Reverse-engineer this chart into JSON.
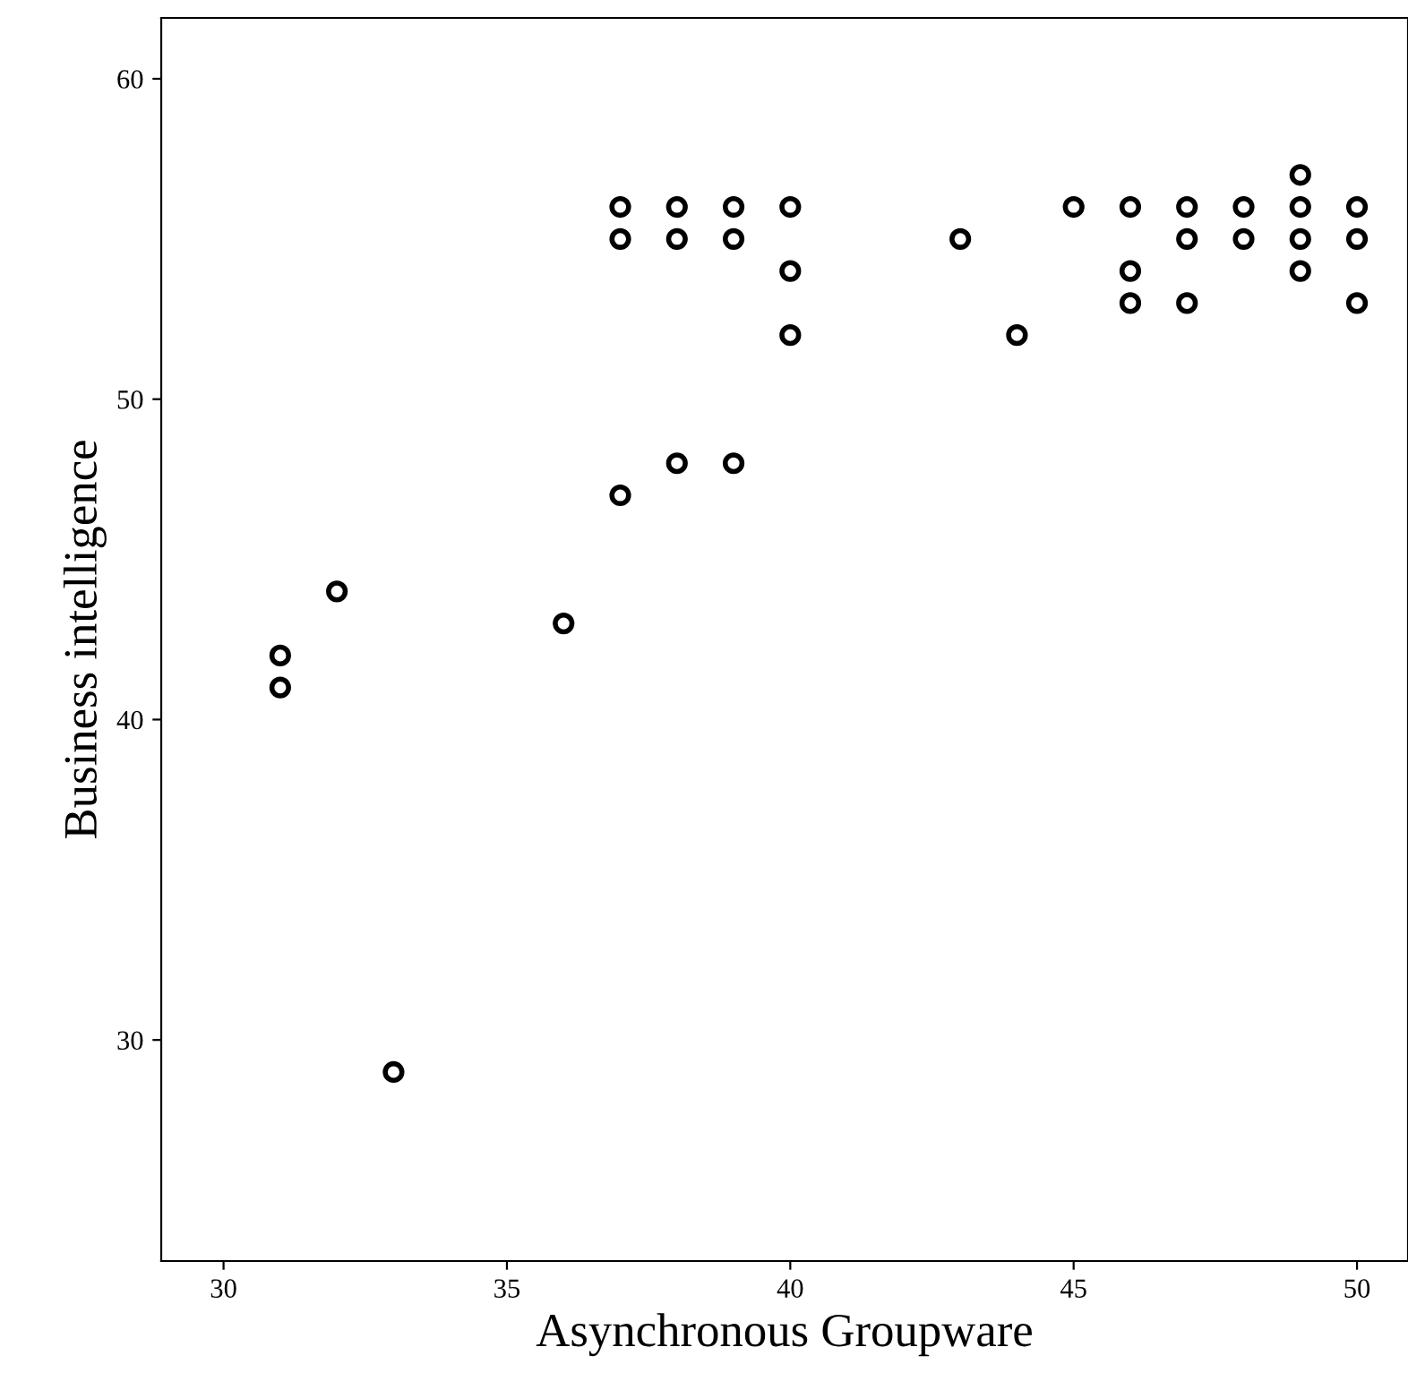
{
  "chart_data": {
    "type": "scatter",
    "xlabel": "Asynchronous Groupware",
    "ylabel": "Business intelligence",
    "series": [
      {
        "color": "#000000",
        "x": [
          31,
          31,
          32,
          33,
          36,
          37,
          37,
          37,
          38,
          38,
          38,
          39,
          39,
          39,
          40,
          40,
          40,
          43,
          44,
          45,
          46,
          46,
          46,
          47,
          47,
          47,
          48,
          48,
          49,
          49,
          49,
          49,
          50,
          50,
          50
        ],
        "values": [
          42,
          41,
          44,
          29,
          43,
          56,
          55,
          47,
          56,
          55,
          48,
          56,
          55,
          48,
          56,
          54,
          52,
          55,
          52,
          56,
          56,
          54,
          53,
          56,
          55,
          53,
          56,
          55,
          57,
          56,
          55,
          54,
          56,
          55,
          53
        ]
      }
    ],
    "xlim": [
      28.9,
      50.9
    ],
    "ylim": [
      23.1,
      61.9
    ],
    "xticks": [
      30,
      35,
      40,
      45,
      50
    ],
    "yticks": [
      30,
      40,
      50,
      60
    ],
    "marker": "circle",
    "grid": false,
    "legend": false
  }
}
